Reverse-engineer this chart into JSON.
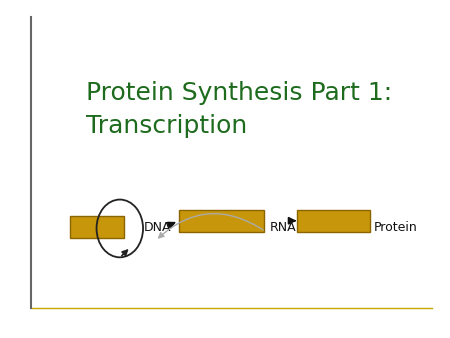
{
  "title_line1": "Protein Synthesis Part 1:",
  "title_line2": "Transcription",
  "title_color": "#1e6b1e",
  "background_color": "#ffffff",
  "border_top_color": "#c8a800",
  "border_left_color": "#666666",
  "rect_color": "#c8960a",
  "rect_edge_color": "#8a6500",
  "label_dna": "DNA",
  "label_rna": "RNA",
  "label_protein": "Protein",
  "label_color": "#111111",
  "arrow_color": "#111111",
  "feedback_arrow_color": "#aaaaaa",
  "circle_edge_color": "#222222",
  "title_fontsize": 18,
  "label_fontsize": 9
}
